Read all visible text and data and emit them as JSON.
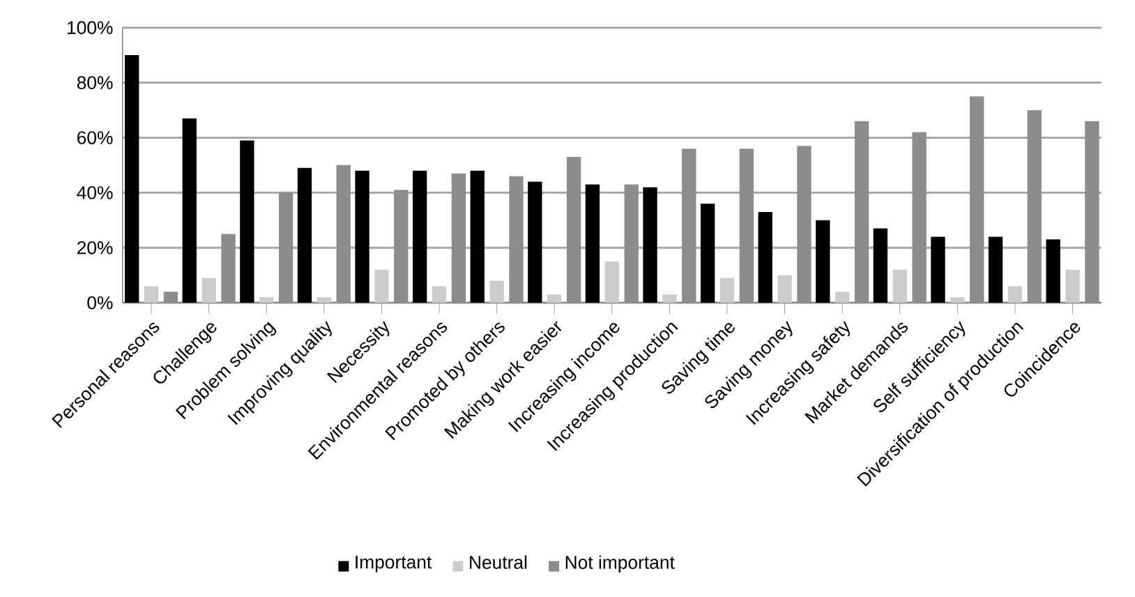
{
  "chart_data": {
    "type": "bar",
    "categories": [
      "Personal reasons",
      "Challenge",
      "Problem solving",
      "Improving quality",
      "Necessity",
      "Environmental reasons",
      "Promoted by others",
      "Making work easier",
      "Increasing income",
      "Increasing production",
      "Saving time",
      "Saving money",
      "Increasing safety",
      "Market demands",
      "Self sufficiency",
      "Diversification of production",
      "Coincidence"
    ],
    "series": [
      {
        "name": "Important",
        "color": "#000000",
        "values": [
          90,
          67,
          59,
          49,
          48,
          48,
          48,
          44,
          43,
          42,
          36,
          33,
          30,
          27,
          24,
          24,
          23
        ]
      },
      {
        "name": "Neutral",
        "color": "#cccccc",
        "values": [
          6,
          9,
          2,
          2,
          12,
          6,
          8,
          3,
          15,
          3,
          9,
          10,
          4,
          12,
          2,
          6,
          12
        ]
      },
      {
        "name": "Not important",
        "color": "#8c8c8c",
        "values": [
          4,
          25,
          40,
          50,
          41,
          47,
          46,
          53,
          43,
          56,
          56,
          57,
          66,
          62,
          75,
          70,
          66
        ]
      }
    ],
    "ylim": [
      0,
      100
    ],
    "yticks": [
      {
        "value": 0,
        "label": "0%"
      },
      {
        "value": 20,
        "label": "20%"
      },
      {
        "value": 40,
        "label": "40%"
      },
      {
        "value": 60,
        "label": "60%"
      },
      {
        "value": 80,
        "label": "80%"
      },
      {
        "value": 100,
        "label": "100%"
      }
    ],
    "grid": "y",
    "legend": "bottom"
  }
}
